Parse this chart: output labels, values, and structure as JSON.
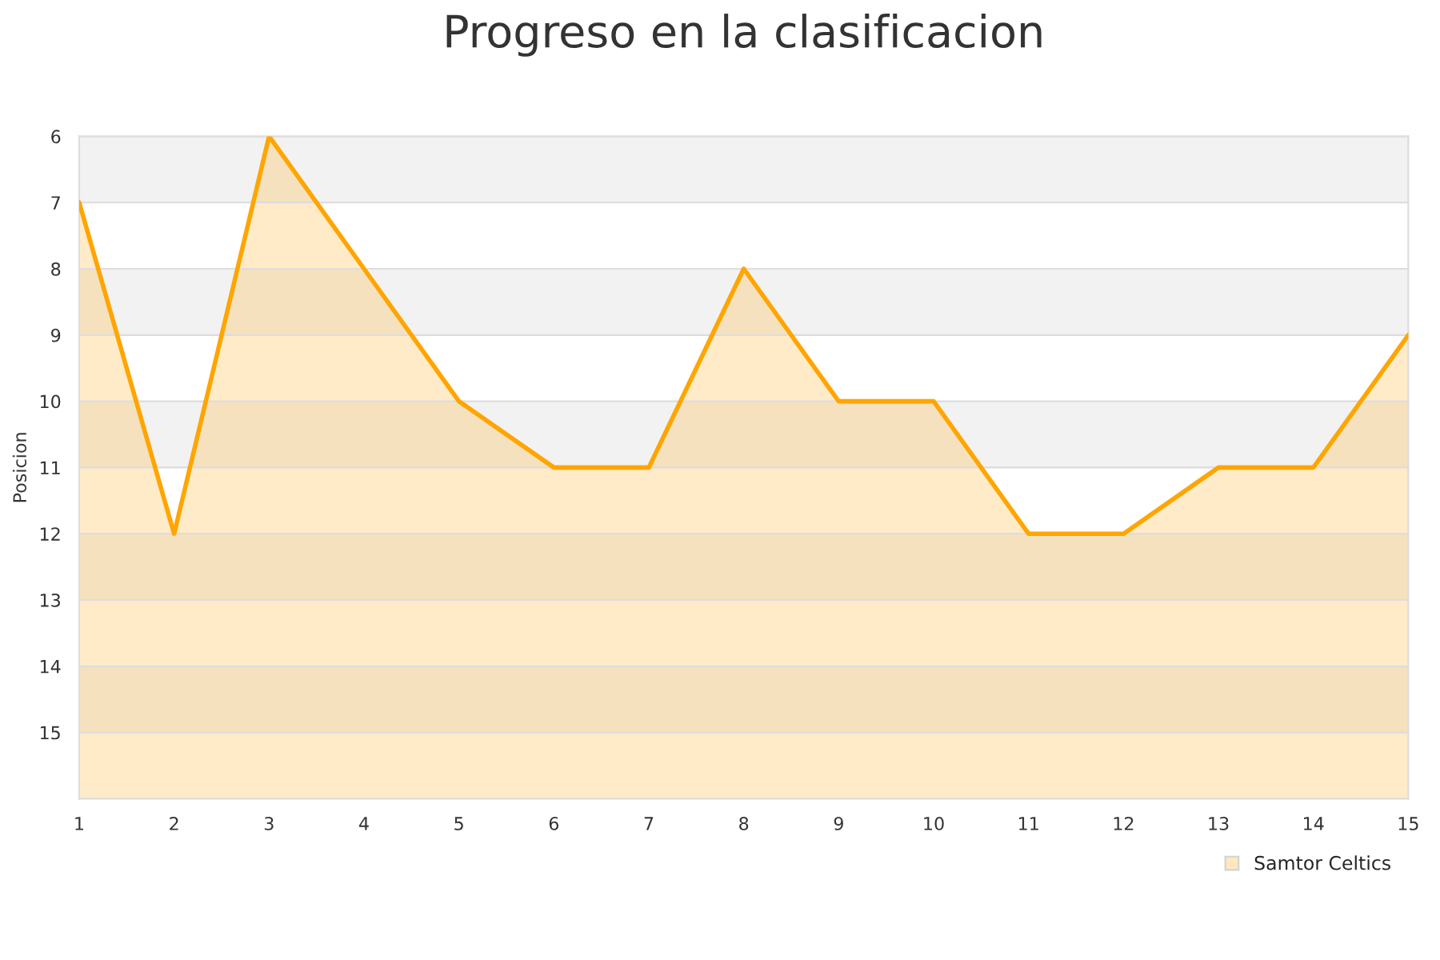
{
  "chart_data": {
    "type": "area",
    "title": "Progreso en la clasificacion",
    "ylabel": "Posicion",
    "x": [
      1,
      2,
      3,
      4,
      5,
      6,
      7,
      8,
      9,
      10,
      11,
      12,
      13,
      14,
      15
    ],
    "series": [
      {
        "name": "Samtor Celtics",
        "color": "#ffa500",
        "values": [
          7,
          12,
          6,
          8,
          10,
          11,
          11,
          8,
          10,
          10,
          12,
          12,
          11,
          11,
          9
        ]
      }
    ],
    "xlim": [
      1,
      15
    ],
    "xticks": [
      1,
      2,
      3,
      4,
      5,
      6,
      7,
      8,
      9,
      10,
      11,
      12,
      13,
      14,
      15
    ],
    "ylim": [
      16,
      6
    ],
    "yticks": [
      6,
      7,
      8,
      9,
      10,
      11,
      12,
      13,
      14,
      15
    ],
    "bands": [
      {
        "axis": "y",
        "from": 6,
        "to": 7,
        "color": "#f2f2f2"
      },
      {
        "axis": "y",
        "from": 8,
        "to": 9,
        "color": "#f2f2f2"
      },
      {
        "axis": "y",
        "from": 10,
        "to": 11,
        "color": "#f2f2f2"
      },
      {
        "axis": "y",
        "from": 12,
        "to": 13,
        "color": "#f2f2f2"
      },
      {
        "axis": "y",
        "from": 14,
        "to": 15,
        "color": "#f2f2f2"
      }
    ],
    "grid": "y",
    "legend": "bottom right"
  }
}
